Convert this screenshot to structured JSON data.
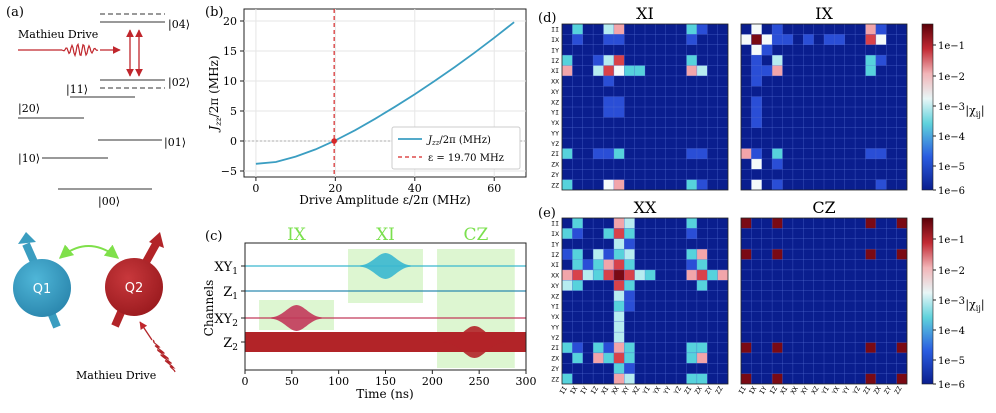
{
  "panels": {
    "a": "(a)",
    "b": "(b)",
    "c": "(c)",
    "d": "(d)",
    "e": "(e)"
  },
  "panel_a": {
    "drive_label": "Mathieu Drive",
    "levels_right": [
      "|04⟩",
      "|02⟩",
      "|01⟩"
    ],
    "levels_left": [
      "|11⟩",
      "|20⟩",
      "|10⟩"
    ],
    "ground": "|00⟩",
    "q1": "Q1",
    "q2": "Q2",
    "bottom_drive_label": "Mathieu Drive",
    "colors": {
      "q1": "#3a9dc0",
      "q2": "#b22428",
      "drive": "#c0262c",
      "coupling": "#7fe04a"
    }
  },
  "chart_data": [
    {
      "type": "line",
      "panel": "b",
      "xlabel": "Drive Amplitude ε/2π (MHz)",
      "ylabel": "J_zz/2π (MHz)",
      "ylabel_main": "J",
      "ylabel_sub": "zz",
      "ylabel_rest": "/2π (MHz)",
      "xticks": [
        0,
        20,
        40,
        60
      ],
      "yticks": [
        -5,
        0,
        5,
        10,
        15,
        20
      ],
      "xlim": [
        -3,
        68
      ],
      "ylim": [
        -6,
        22
      ],
      "series": [
        {
          "name": "J_zz/2π (MHz)",
          "color": "#3b9ec2",
          "x": [
            0,
            5,
            10,
            15,
            19.7,
            25,
            30,
            35,
            40,
            45,
            50,
            55,
            60,
            65
          ],
          "y": [
            -3.8,
            -3.5,
            -2.6,
            -1.4,
            0,
            1.8,
            3.7,
            5.7,
            7.8,
            10.0,
            12.3,
            14.7,
            17.2,
            19.8
          ]
        }
      ],
      "vline": {
        "x": 19.7,
        "label": "ε = 19.70 MHz",
        "color": "#d62728"
      },
      "marker": {
        "x": 19.7,
        "y": 0
      },
      "legend": [
        {
          "label": "J_zz/2π (MHz)",
          "main": "J",
          "sub": "zz",
          "rest": "/2π (MHz)"
        },
        {
          "label": "ε = 19.70 MHz"
        }
      ],
      "legend_position": "lower-right"
    },
    {
      "type": "timeline",
      "panel": "c",
      "xlabel": "Time (ns)",
      "ylabel": "Channels",
      "xticks": [
        0,
        50,
        100,
        150,
        200,
        250,
        300
      ],
      "xlim": [
        0,
        300
      ],
      "gate_labels": [
        "IX",
        "XI",
        "CZ"
      ],
      "gates": [
        {
          "label": "IX",
          "start": 15,
          "end": 95
        },
        {
          "label": "XI",
          "start": 110,
          "end": 190
        },
        {
          "label": "CZ",
          "start": 205,
          "end": 288
        }
      ],
      "channels": [
        {
          "name": "XY1",
          "main": "XY",
          "sub": "1",
          "color": "#3ab8cf"
        },
        {
          "name": "Z1",
          "main": "Z",
          "sub": "1",
          "color": "#2d8ab0"
        },
        {
          "name": "XY2",
          "main": "XY",
          "sub": "2",
          "color": "#c23a5a"
        },
        {
          "name": "Z2",
          "main": "Z",
          "sub": "2",
          "color": "#b22428"
        }
      ],
      "pulses": [
        {
          "channel": "XY1",
          "center": 150,
          "width": 70
        },
        {
          "channel": "XY2",
          "center": 55,
          "width": 70
        },
        {
          "channel": "Z2",
          "center": 245,
          "width": 80
        }
      ]
    },
    {
      "type": "heatmap",
      "panel": "d",
      "title": "XI",
      "labels": [
        "II",
        "IX",
        "IY",
        "IZ",
        "XI",
        "XX",
        "XY",
        "XZ",
        "YI",
        "YX",
        "YY",
        "YZ",
        "ZI",
        "ZX",
        "ZY",
        "ZZ"
      ],
      "nonzero": [
        [
          0,
          1,
          "cyan"
        ],
        [
          0,
          4,
          "lcyan"
        ],
        [
          0,
          5,
          "pink"
        ],
        [
          0,
          12,
          "cyan"
        ],
        [
          0,
          13,
          "mblue"
        ],
        [
          1,
          1,
          "mblue"
        ],
        [
          1,
          4,
          "mblue"
        ],
        [
          1,
          5,
          "mblue"
        ],
        [
          1,
          12,
          "mblue"
        ],
        [
          3,
          0,
          "cyan"
        ],
        [
          3,
          3,
          "mblue"
        ],
        [
          3,
          4,
          "lcyan"
        ],
        [
          3,
          5,
          "red"
        ],
        [
          3,
          12,
          "cyan"
        ],
        [
          4,
          0,
          "pink"
        ],
        [
          4,
          3,
          "lcyan"
        ],
        [
          4,
          4,
          "red"
        ],
        [
          4,
          5,
          "white"
        ],
        [
          4,
          6,
          "cyan"
        ],
        [
          4,
          7,
          "cyan"
        ],
        [
          4,
          12,
          "pink"
        ],
        [
          4,
          13,
          "lcyan"
        ],
        [
          5,
          4,
          "mblue"
        ],
        [
          7,
          4,
          "mblue"
        ],
        [
          7,
          5,
          "mblue"
        ],
        [
          8,
          4,
          "mblue"
        ],
        [
          8,
          5,
          "mblue"
        ],
        [
          12,
          0,
          "cyan"
        ],
        [
          12,
          3,
          "mblue"
        ],
        [
          12,
          4,
          "mblue"
        ],
        [
          12,
          5,
          "cyan"
        ],
        [
          12,
          12,
          "mblue"
        ],
        [
          12,
          13,
          "mblue"
        ],
        [
          15,
          0,
          "cyan"
        ],
        [
          15,
          4,
          "white"
        ],
        [
          15,
          5,
          "pink"
        ],
        [
          15,
          12,
          "cyan"
        ],
        [
          15,
          13,
          "mblue"
        ]
      ]
    },
    {
      "type": "heatmap",
      "panel": "d",
      "title": "IX",
      "labels": [
        "II",
        "IX",
        "IY",
        "IZ",
        "XI",
        "XX",
        "XY",
        "XZ",
        "YI",
        "YX",
        "YY",
        "YZ",
        "ZI",
        "ZX",
        "ZY",
        "ZZ"
      ],
      "nonzero": [
        [
          0,
          1,
          "white"
        ],
        [
          0,
          3,
          "mblue"
        ],
        [
          0,
          12,
          "pink"
        ],
        [
          0,
          13,
          "mblue"
        ],
        [
          1,
          0,
          "white"
        ],
        [
          1,
          1,
          "dred"
        ],
        [
          1,
          2,
          "white"
        ],
        [
          1,
          3,
          "mblue"
        ],
        [
          1,
          4,
          "mblue"
        ],
        [
          1,
          6,
          "mblue"
        ],
        [
          1,
          8,
          "mblue"
        ],
        [
          1,
          9,
          "mblue"
        ],
        [
          1,
          12,
          "red"
        ],
        [
          1,
          13,
          "white"
        ],
        [
          2,
          1,
          "white"
        ],
        [
          2,
          2,
          "mblue"
        ],
        [
          3,
          1,
          "mblue"
        ],
        [
          3,
          3,
          "lcyan"
        ],
        [
          3,
          12,
          "cyan"
        ],
        [
          3,
          13,
          "mblue"
        ],
        [
          4,
          1,
          "mblue"
        ],
        [
          4,
          2,
          "mblue"
        ],
        [
          4,
          3,
          "pink"
        ],
        [
          4,
          12,
          "cyan"
        ],
        [
          5,
          1,
          "mblue"
        ],
        [
          7,
          1,
          "mblue"
        ],
        [
          8,
          1,
          "mblue"
        ],
        [
          9,
          1,
          "mblue"
        ],
        [
          12,
          0,
          "pink"
        ],
        [
          12,
          1,
          "mblue"
        ],
        [
          12,
          3,
          "cyan"
        ],
        [
          12,
          12,
          "mblue"
        ],
        [
          12,
          13,
          "mblue"
        ],
        [
          13,
          1,
          "white"
        ],
        [
          13,
          3,
          "mblue"
        ],
        [
          15,
          1,
          "white"
        ],
        [
          15,
          3,
          "mblue"
        ],
        [
          15,
          13,
          "mblue"
        ]
      ]
    },
    {
      "type": "heatmap",
      "panel": "e",
      "title": "XX",
      "labels": [
        "II",
        "IX",
        "IY",
        "IZ",
        "XI",
        "XX",
        "XY",
        "XZ",
        "YI",
        "YX",
        "YY",
        "YZ",
        "ZI",
        "ZX",
        "ZY",
        "ZZ"
      ],
      "nonzero": [
        [
          0,
          1,
          "cyan"
        ],
        [
          0,
          5,
          "pink"
        ],
        [
          0,
          6,
          "lcyan"
        ],
        [
          0,
          12,
          "cyan"
        ],
        [
          1,
          0,
          "cyan"
        ],
        [
          1,
          1,
          "mblue"
        ],
        [
          1,
          4,
          "cyan"
        ],
        [
          1,
          5,
          "red"
        ],
        [
          1,
          6,
          "cyan"
        ],
        [
          1,
          12,
          "mblue"
        ],
        [
          2,
          5,
          "lcyan"
        ],
        [
          2,
          6,
          "mblue"
        ],
        [
          3,
          0,
          "mblue"
        ],
        [
          3,
          1,
          "cyan"
        ],
        [
          3,
          3,
          "lcyan"
        ],
        [
          3,
          4,
          "mblue"
        ],
        [
          3,
          5,
          "cyan"
        ],
        [
          3,
          6,
          "lcyan"
        ],
        [
          3,
          12,
          "cyan"
        ],
        [
          3,
          13,
          "pink"
        ],
        [
          4,
          1,
          "cyan"
        ],
        [
          4,
          2,
          "mblue"
        ],
        [
          4,
          3,
          "cyan"
        ],
        [
          4,
          4,
          "pink"
        ],
        [
          4,
          5,
          "red"
        ],
        [
          4,
          6,
          "cyan"
        ],
        [
          4,
          12,
          "mblue"
        ],
        [
          4,
          13,
          "cyan"
        ],
        [
          5,
          0,
          "pink"
        ],
        [
          5,
          1,
          "red"
        ],
        [
          5,
          2,
          "lcyan"
        ],
        [
          5,
          3,
          "cyan"
        ],
        [
          5,
          4,
          "red"
        ],
        [
          5,
          5,
          "dred"
        ],
        [
          5,
          6,
          "red"
        ],
        [
          5,
          7,
          "lcyan"
        ],
        [
          5,
          8,
          "cyan"
        ],
        [
          5,
          12,
          "pink"
        ],
        [
          5,
          13,
          "red"
        ],
        [
          5,
          14,
          "cyan"
        ],
        [
          5,
          15,
          "pink"
        ],
        [
          6,
          0,
          "lcyan"
        ],
        [
          6,
          1,
          "cyan"
        ],
        [
          6,
          5,
          "red"
        ],
        [
          6,
          6,
          "cyan"
        ],
        [
          6,
          13,
          "cyan"
        ],
        [
          7,
          5,
          "lcyan"
        ],
        [
          7,
          6,
          "mblue"
        ],
        [
          8,
          5,
          "cyan"
        ],
        [
          8,
          6,
          "mblue"
        ],
        [
          9,
          5,
          "lcyan"
        ],
        [
          10,
          5,
          "lcyan"
        ],
        [
          11,
          5,
          "lcyan"
        ],
        [
          12,
          0,
          "cyan"
        ],
        [
          12,
          1,
          "mblue"
        ],
        [
          12,
          3,
          "cyan"
        ],
        [
          12,
          4,
          "mblue"
        ],
        [
          12,
          5,
          "pink"
        ],
        [
          12,
          6,
          "cyan"
        ],
        [
          12,
          12,
          "cyan"
        ],
        [
          12,
          13,
          "cyan"
        ],
        [
          13,
          1,
          "cyan"
        ],
        [
          13,
          3,
          "pink"
        ],
        [
          13,
          4,
          "cyan"
        ],
        [
          13,
          5,
          "red"
        ],
        [
          13,
          6,
          "cyan"
        ],
        [
          13,
          12,
          "cyan"
        ],
        [
          13,
          13,
          "pink"
        ],
        [
          14,
          5,
          "cyan"
        ],
        [
          14,
          6,
          "mblue"
        ],
        [
          15,
          0,
          "cyan"
        ],
        [
          15,
          5,
          "pink"
        ],
        [
          15,
          6,
          "lcyan"
        ],
        [
          15,
          12,
          "cyan"
        ],
        [
          15,
          13,
          "cyan"
        ]
      ]
    },
    {
      "type": "heatmap",
      "panel": "e",
      "title": "CZ",
      "labels": [
        "II",
        "IX",
        "IY",
        "IZ",
        "XI",
        "XX",
        "XY",
        "XZ",
        "YI",
        "YX",
        "YY",
        "YZ",
        "ZI",
        "ZX",
        "ZY",
        "ZZ"
      ],
      "nonzero": [
        [
          0,
          0,
          "dred"
        ],
        [
          0,
          3,
          "dred"
        ],
        [
          0,
          12,
          "dred"
        ],
        [
          0,
          15,
          "dred"
        ],
        [
          3,
          0,
          "dred"
        ],
        [
          3,
          3,
          "dred"
        ],
        [
          3,
          12,
          "dred"
        ],
        [
          3,
          15,
          "dred"
        ],
        [
          12,
          0,
          "dred"
        ],
        [
          12,
          3,
          "dred"
        ],
        [
          12,
          12,
          "dred"
        ],
        [
          12,
          15,
          "dred"
        ],
        [
          15,
          0,
          "dred"
        ],
        [
          15,
          3,
          "dred"
        ],
        [
          15,
          12,
          "dred"
        ],
        [
          15,
          15,
          "dred"
        ]
      ]
    }
  ],
  "colorbar": {
    "ticks": [
      "1e−1",
      "1e−2",
      "1e−3",
      "1e−4",
      "1e−5",
      "1e−6"
    ],
    "label": "|χij|",
    "label_main": "|χ",
    "label_sub": "ij",
    "label_end": "|",
    "colors": {
      "dblue": "#0a1e8e",
      "mblue": "#2a4ed6",
      "cyan": "#56d2dc",
      "lcyan": "#b6ecf0",
      "white": "#f5fafa",
      "pink": "#f2a5aa",
      "red": "#d8424a",
      "dred": "#7a0a14"
    }
  }
}
